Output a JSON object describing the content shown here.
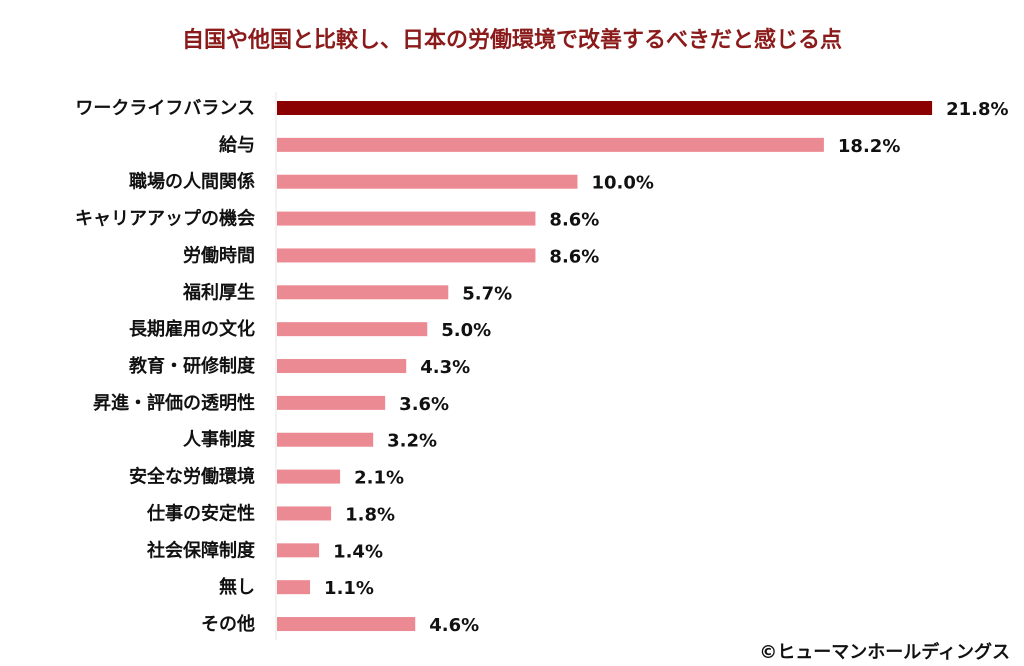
{
  "chart_data": {
    "type": "bar",
    "orientation": "horizontal",
    "title": "自国や他国と比較し、日本の労働環境で改善するべきだと感じる点",
    "categories": [
      "ワークライフバランス",
      "給与",
      "職場の人間関係",
      "キャリアアップの機会",
      "労働時間",
      "福利厚生",
      "長期雇用の文化",
      "教育・研修制度",
      "昇進・評価の透明性",
      "人事制度",
      "安全な労働環境",
      "仕事の安定性",
      "社会保障制度",
      "無し",
      "その他"
    ],
    "values": [
      21.8,
      18.2,
      10.0,
      8.6,
      8.6,
      5.7,
      5.0,
      4.3,
      3.6,
      3.2,
      2.1,
      1.8,
      1.4,
      1.1,
      4.6
    ],
    "value_labels": [
      "21.8%",
      "18.2%",
      "10.0%",
      "8.6%",
      "8.6%",
      "5.7%",
      "5.0%",
      "4.3%",
      "3.6%",
      "3.2%",
      "2.1%",
      "1.8%",
      "1.4%",
      "1.1%",
      "4.6%"
    ],
    "unit": "%",
    "grid": false,
    "legend": "none",
    "colors": {
      "highlight": "#8b0000",
      "default": "#ec8a93",
      "title": "#8b1a1a"
    }
  },
  "credit": "©ヒューマンホールディングス"
}
